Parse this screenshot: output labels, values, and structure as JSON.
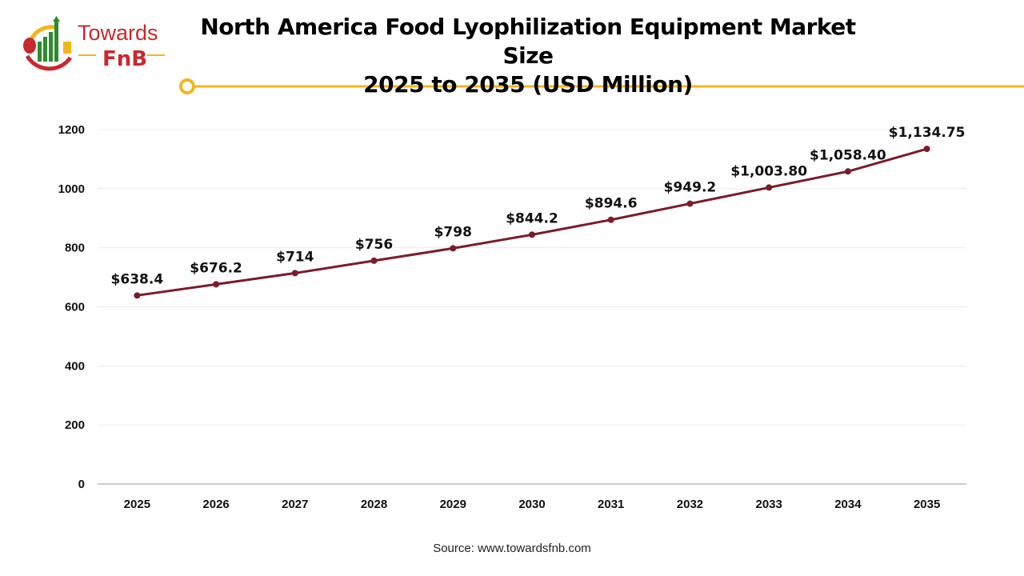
{
  "logo": {
    "text_top": "Towards",
    "text_bottom": "FnB"
  },
  "source": "Source: www.towardsfnb.com",
  "colors": {
    "line": "#7a1c2a",
    "accent": "#f2b61b",
    "brand_red": "#c8282e",
    "brand_green": "#2e8b2e"
  },
  "chart_data": {
    "type": "line",
    "title": "North America Food Lyophilization Equipment Market Size 2025 to 2035 (USD Million)",
    "title_lines": [
      "North America Food Lyophilization Equipment Market Size",
      "2025 to 2035 (USD Million)"
    ],
    "categories": [
      "2025",
      "2026",
      "2027",
      "2028",
      "2029",
      "2030",
      "2031",
      "2032",
      "2033",
      "2034",
      "2035"
    ],
    "values": [
      638.4,
      676.2,
      714,
      756,
      798,
      844.2,
      894.6,
      949.2,
      1003.8,
      1058.4,
      1134.75
    ],
    "data_labels": [
      "$638.4",
      "$676.2",
      "$714",
      "$756",
      "$798",
      "$844.2",
      "$894.6",
      "$949.2",
      "$1,003.80",
      "$1,058.40",
      "$1,134.75"
    ],
    "ylim": [
      0,
      1200
    ],
    "yticks": [
      "0",
      "200",
      "400",
      "600",
      "800",
      "1000",
      "1200"
    ],
    "grid": true,
    "legend": "none",
    "xlabel": "",
    "ylabel": ""
  }
}
